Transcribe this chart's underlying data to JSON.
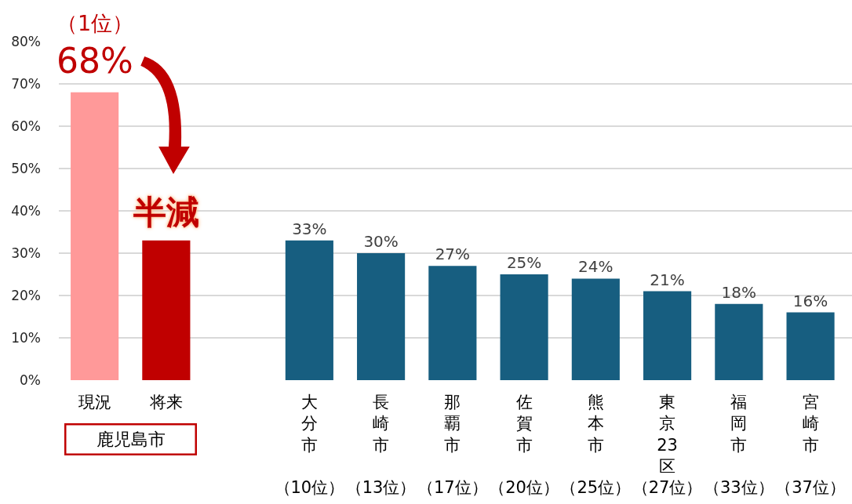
{
  "chart_data": {
    "type": "bar",
    "categories": [
      "現況",
      "将来",
      null,
      "大分市（10位）",
      "長崎市（13位）",
      "那覇市（17位）",
      "佐賀市（20位）",
      "熊本市（25位）",
      "東京23区（27位）",
      "福岡市（33位）",
      "宮崎市（37位）"
    ],
    "values": [
      68,
      33,
      null,
      33,
      30,
      27,
      25,
      24,
      21,
      18,
      16
    ],
    "colors": [
      "#ff9999",
      "#c00000",
      null,
      "#175e80",
      "#175e80",
      "#175e80",
      "#175e80",
      "#175e80",
      "#175e80",
      "#175e80",
      "#175e80"
    ],
    "value_labels": [
      null,
      null,
      null,
      "33%",
      "30%",
      "27%",
      "25%",
      "24%",
      "21%",
      "18%",
      "16%"
    ],
    "ylim": [
      0,
      80
    ],
    "yticks": [
      {
        "value": 0,
        "label": "0%"
      },
      {
        "value": 10,
        "label": "10%"
      },
      {
        "value": 20,
        "label": "20%"
      },
      {
        "value": 30,
        "label": "30%"
      },
      {
        "value": 40,
        "label": "40%"
      },
      {
        "value": 50,
        "label": "50%"
      },
      {
        "value": 60,
        "label": "60%"
      },
      {
        "value": 70,
        "label": "70%"
      },
      {
        "value": 80,
        "label": "80%"
      }
    ],
    "grid": "y",
    "annotations": [
      {
        "text": "（1位）",
        "x": "現況",
        "y": 68
      },
      {
        "text": "68%",
        "x": "現況",
        "y": 68
      },
      {
        "text": "半減",
        "x": "将来",
        "y": 33
      },
      "鹿児島市"
    ]
  }
}
